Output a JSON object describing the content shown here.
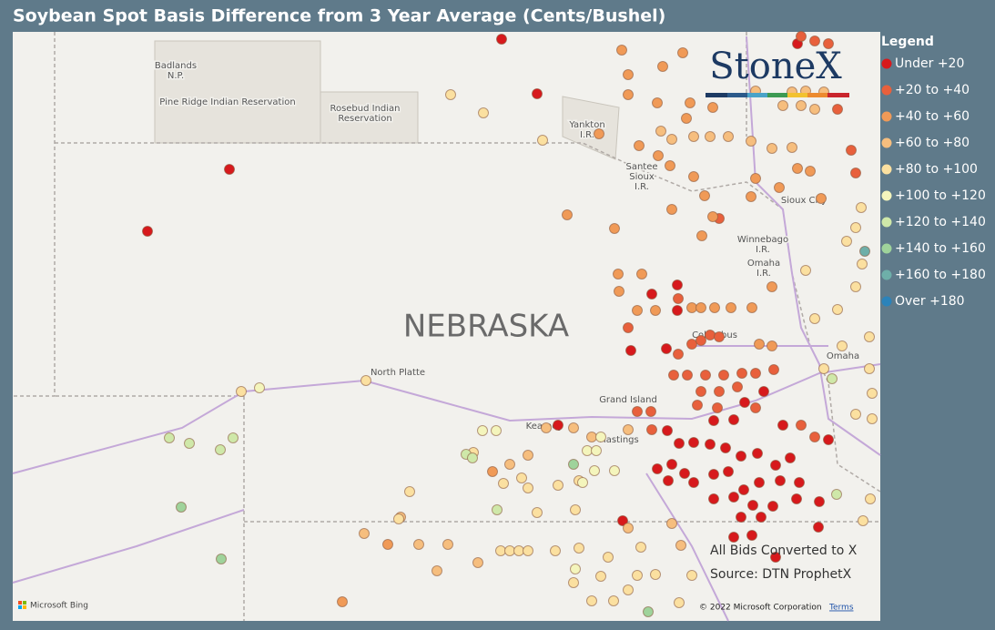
{
  "title": "Soybean Spot Basis Difference from 3 Year Average (Cents/Bushel)",
  "logo": "StoneX",
  "legend": {
    "title": "Legend",
    "items": [
      {
        "label": "Under +20",
        "color": "#d7191c"
      },
      {
        "label": "+20 to +40",
        "color": "#e8603c"
      },
      {
        "label": "+40 to +60",
        "color": "#f09a57"
      },
      {
        "label": "+60 to +80",
        "color": "#f6be7e"
      },
      {
        "label": "+80 to +100",
        "color": "#fbe0a0"
      },
      {
        "label": "+100 to +120",
        "color": "#f4f5bc"
      },
      {
        "label": "+120 to +140",
        "color": "#cfe8a9"
      },
      {
        "label": "+140 to +160",
        "color": "#9fd39b"
      },
      {
        "label": "+160 to +180",
        "color": "#6eafa9"
      },
      {
        "label": "Over +180",
        "color": "#2b83ba"
      }
    ]
  },
  "map_labels": [
    {
      "lines": [
        "Badlands",
        "N.P."
      ]
    },
    {
      "lines": [
        "Pine Ridge Indian Reservation"
      ]
    },
    {
      "lines": [
        "Rosebud Indian",
        "Reservation"
      ]
    },
    {
      "lines": [
        "Yankton",
        "I.R."
      ]
    },
    {
      "lines": [
        "Santee",
        "Sioux",
        "I.R."
      ]
    },
    {
      "lines": [
        "Sioux City"
      ]
    },
    {
      "lines": [
        "Winnebago",
        "I.R."
      ]
    },
    {
      "lines": [
        "Omaha",
        "I.R."
      ]
    },
    {
      "lines": [
        "NEBRASKA"
      ]
    },
    {
      "lines": [
        "North Platte"
      ]
    },
    {
      "lines": [
        "Columbus"
      ]
    },
    {
      "lines": [
        "Omaha"
      ]
    },
    {
      "lines": [
        "Grand Island"
      ]
    },
    {
      "lines": [
        "Kearney"
      ]
    },
    {
      "lines": [
        "Hastings"
      ]
    }
  ],
  "notes": [
    "All Bids Converted to X",
    "Source: DTN ProphetX"
  ],
  "attribution": {
    "bing": "Microsoft Bing",
    "copyright": "© 2022 Microsoft Corporation",
    "terms": "Terms"
  }
}
